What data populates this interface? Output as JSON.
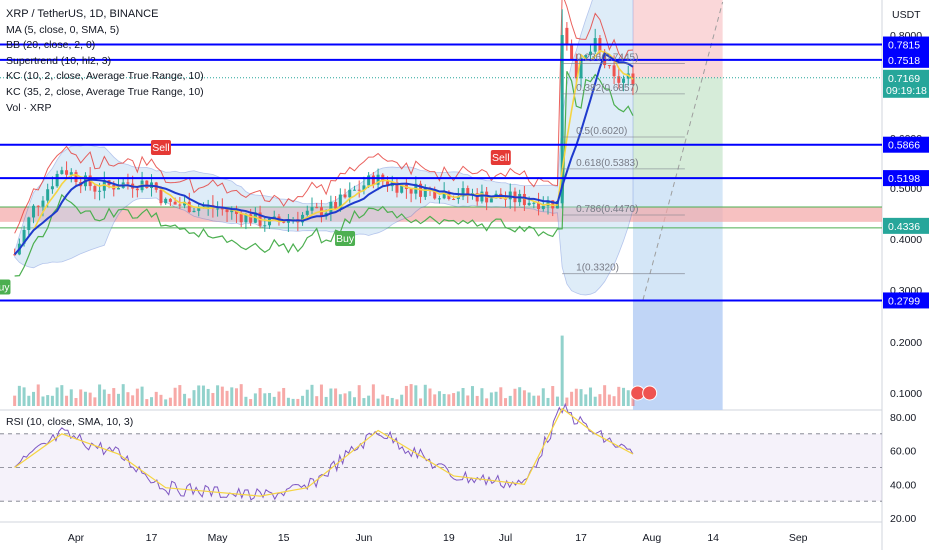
{
  "header": {
    "symbol_title": "XRP / TetherUS, 1D, BINANCE",
    "currency": "USDT"
  },
  "indicators": [
    "MA (5, close, 0, SMA, 5)",
    "BB (20, close, 2, 0)",
    "Supertrend (10, hl2, 3)",
    "KC (10, 2, close, Average True Range, 10)",
    "KC (35, 2, close, Average True Range, 10)",
    "Vol · XRP"
  ],
  "rsi_legend": "RSI (10, close, SMA, 10, 3)",
  "price_axis_ticks": [
    "0.8000",
    "0.6000",
    "0.5000",
    "0.4000",
    "0.3000",
    "0.2000",
    "0.1000"
  ],
  "rsi_axis_ticks": [
    "80.00",
    "60.00",
    "40.00",
    "20.00"
  ],
  "time_axis_labels": [
    "Apr",
    "17",
    "May",
    "15",
    "Jun",
    "19",
    "Jul",
    "17",
    "Aug",
    "14",
    "Sep"
  ],
  "horizontal_levels": [
    {
      "label": "0.7815",
      "value": 0.7815
    },
    {
      "label": "0.7518",
      "value": 0.7518
    },
    {
      "label": "0.5866",
      "value": 0.5866
    },
    {
      "label": "0.5198",
      "value": 0.5198
    },
    {
      "label": "0.2799",
      "value": 0.2799
    }
  ],
  "support_zone": {
    "label": "0.4336",
    "from": 0.4336,
    "to": 0.4628
  },
  "current_price": {
    "label": "0.7169",
    "value": 0.7169,
    "countdown": "09:19:18"
  },
  "fib_levels": [
    {
      "label": "0.236(0.7445)",
      "value": 0.7445
    },
    {
      "label": "0.382(0.6857)",
      "value": 0.6857
    },
    {
      "label": "0.5(0.6020)",
      "value": 0.602
    },
    {
      "label": "0.618(0.5383)",
      "value": 0.5383
    },
    {
      "label": "0.786(0.4470)",
      "value": 0.447
    },
    {
      "label": "1(0.3320)",
      "value": 0.332
    }
  ],
  "signals": [
    {
      "label": "Sell",
      "kind": "sell"
    },
    {
      "label": "Sell",
      "kind": "sell"
    },
    {
      "label": "Buy",
      "kind": "buy"
    },
    {
      "label": "Buy",
      "kind": "buy"
    }
  ],
  "colors": {
    "up": "#26a69a",
    "down": "#ef5350",
    "level": "#0000ff",
    "current": "#26a69a",
    "ma": "#f5d442",
    "bb_fill": "#b7d7f0",
    "kc_mid": "#1e3acd",
    "supertrend_up": "#4caf50",
    "supertrend_down": "#e53935",
    "zone": "#f4a6a6"
  },
  "chart_data": {
    "type": "candlestick",
    "title": "XRP / TetherUS, 1D, BINANCE",
    "y_axis": {
      "unit": "USDT",
      "range": [
        0.0,
        0.85
      ]
    },
    "x_axis_labels": [
      "Apr",
      "17",
      "May",
      "15",
      "Jun",
      "19",
      "Jul",
      "17",
      "Aug",
      "14",
      "Sep"
    ],
    "price_path": [
      {
        "date": "2023-03-19",
        "close": 0.37
      },
      {
        "date": "2023-03-23",
        "close": 0.46
      },
      {
        "date": "2023-03-29",
        "close": 0.54
      },
      {
        "date": "2023-04-05",
        "close": 0.5
      },
      {
        "date": "2023-04-12",
        "close": 0.51
      },
      {
        "date": "2023-04-17",
        "close": 0.51
      },
      {
        "date": "2023-04-20",
        "close": 0.47
      },
      {
        "date": "2023-05-01",
        "close": 0.46
      },
      {
        "date": "2023-05-12",
        "close": 0.43
      },
      {
        "date": "2023-05-25",
        "close": 0.46
      },
      {
        "date": "2023-06-03",
        "close": 0.52
      },
      {
        "date": "2023-06-10",
        "close": 0.5
      },
      {
        "date": "2023-06-20",
        "close": 0.49
      },
      {
        "date": "2023-07-01",
        "close": 0.48
      },
      {
        "date": "2023-07-12",
        "close": 0.47
      },
      {
        "date": "2023-07-13",
        "close": 0.82
      },
      {
        "date": "2023-07-16",
        "close": 0.73
      },
      {
        "date": "2023-07-20",
        "close": 0.78
      },
      {
        "date": "2023-07-24",
        "close": 0.71
      },
      {
        "date": "2023-07-28",
        "close": 0.7169
      }
    ],
    "rsi": {
      "range": [
        20,
        85
      ],
      "levels": [
        70,
        50,
        30
      ],
      "points": [
        {
          "date": "2023-03-19",
          "value": 50
        },
        {
          "date": "2023-03-29",
          "value": 70
        },
        {
          "date": "2023-04-10",
          "value": 58
        },
        {
          "date": "2023-04-20",
          "value": 38
        },
        {
          "date": "2023-05-10",
          "value": 33
        },
        {
          "date": "2023-05-20",
          "value": 38
        },
        {
          "date": "2023-06-04",
          "value": 72
        },
        {
          "date": "2023-06-20",
          "value": 45
        },
        {
          "date": "2023-07-05",
          "value": 40
        },
        {
          "date": "2023-07-13",
          "value": 85
        },
        {
          "date": "2023-07-20",
          "value": 70
        },
        {
          "date": "2023-07-28",
          "value": 58
        }
      ]
    }
  }
}
